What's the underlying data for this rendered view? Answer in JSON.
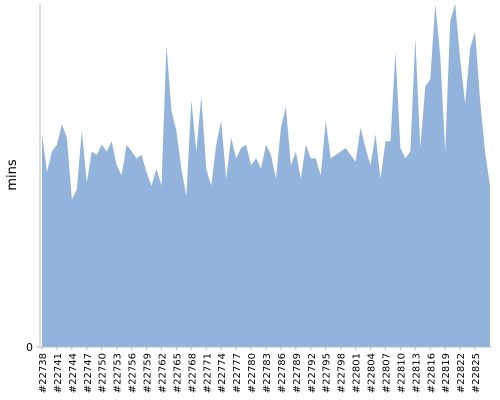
{
  "chart_data": {
    "type": "area",
    "y_label": "mins",
    "color": "#92b3dc",
    "ylim": [
      0,
      100
    ],
    "yticks": [
      0
    ],
    "categories": [
      "#22738",
      null,
      null,
      "#22741",
      null,
      null,
      "#22744",
      null,
      null,
      "#22747",
      null,
      null,
      "#22750",
      null,
      null,
      "#22753",
      null,
      null,
      "#22756",
      null,
      null,
      "#22759",
      null,
      null,
      "#22762",
      null,
      null,
      "#22765",
      null,
      null,
      "#22768",
      null,
      null,
      "#22771",
      null,
      null,
      "#22774",
      null,
      null,
      "#22777",
      null,
      null,
      "#22780",
      null,
      null,
      "#22783",
      null,
      null,
      "#22786",
      null,
      null,
      "#22789",
      null,
      null,
      "#22792",
      null,
      null,
      "#22795",
      null,
      null,
      "#22798",
      null,
      null,
      "#22801",
      null,
      null,
      "#22804",
      null,
      null,
      "#22807",
      null,
      null,
      "#22810",
      null,
      null,
      "#22813",
      null,
      null,
      "#22816",
      null,
      null,
      "#22819",
      null,
      null,
      "#22822",
      null,
      null,
      "#22825",
      null,
      null,
      null
    ],
    "values": [
      62,
      51,
      57,
      59,
      65,
      61,
      43,
      46,
      63,
      48,
      57,
      56,
      59,
      57,
      60,
      53,
      50,
      59,
      57,
      55,
      56,
      51,
      47,
      52,
      47,
      88,
      69,
      63,
      52,
      44,
      72,
      57,
      73,
      52,
      47,
      59,
      66,
      49,
      61,
      55,
      58,
      59,
      53,
      55,
      52,
      59,
      56,
      49,
      64,
      70,
      53,
      57,
      49,
      59,
      55,
      55,
      50,
      66,
      55,
      56,
      57,
      58,
      56,
      54,
      64,
      58,
      53,
      62,
      49,
      60,
      60,
      86,
      58,
      55,
      57,
      90,
      58,
      76,
      78,
      100,
      85,
      57,
      95,
      100,
      84,
      71,
      87,
      92,
      72,
      57,
      47
    ]
  }
}
